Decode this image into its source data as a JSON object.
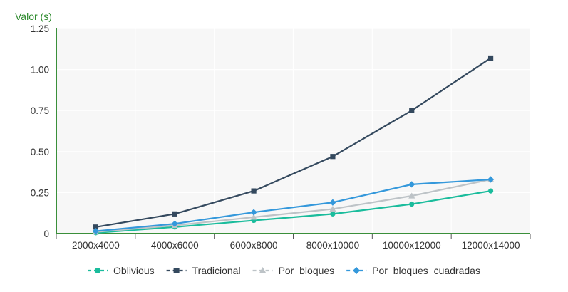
{
  "chart_data": {
    "type": "line",
    "ylabel": "Valor (s)",
    "xlabel": "",
    "categories": [
      "2000x4000",
      "4000x6000",
      "6000x8000",
      "8000x10000",
      "10000x12000",
      "12000x14000"
    ],
    "ylim": [
      0,
      1.25
    ],
    "yticks": [
      0,
      0.25,
      0.5,
      0.75,
      1,
      1.25
    ],
    "ytick_labels": [
      "0",
      "0.25",
      "0.50",
      "0.75",
      "1.00",
      "1.25"
    ],
    "grid": true,
    "legend_position": "bottom",
    "series": [
      {
        "name": "Oblivious",
        "color": "#1abc9c",
        "marker": "circle",
        "values": [
          0.005,
          0.04,
          0.08,
          0.12,
          0.18,
          0.26
        ]
      },
      {
        "name": "Tradicional",
        "color": "#34495e",
        "marker": "square",
        "values": [
          0.04,
          0.12,
          0.26,
          0.47,
          0.75,
          1.07
        ]
      },
      {
        "name": "Por_bloques",
        "color": "#bdc3c7",
        "marker": "triangle",
        "values": [
          0.01,
          0.05,
          0.1,
          0.15,
          0.23,
          0.33
        ]
      },
      {
        "name": "Por_bloques_cuadradas",
        "color": "#3498db",
        "marker": "diamond",
        "values": [
          0.015,
          0.06,
          0.13,
          0.19,
          0.3,
          0.33
        ]
      }
    ]
  },
  "colors": {
    "axis": "#3a8f3a",
    "ylabel": "#2e8b2e",
    "plot_bg": "#f7f7f7",
    "grid": "#ffffff"
  }
}
